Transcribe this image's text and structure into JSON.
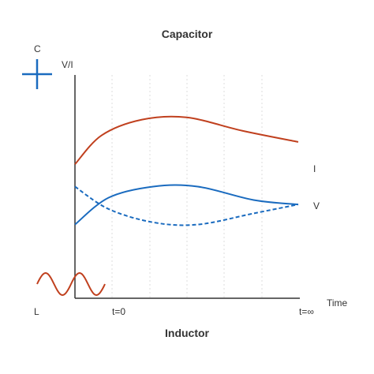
{
  "title": "Capacitor",
  "subtitle": "Inductor",
  "labels": {
    "capacitor_symbol": "C",
    "inductor_symbol": "L",
    "y_axis": "V/I",
    "x_axis": "Time",
    "t_start": "t=0",
    "t_end": "t=∞",
    "current": "I",
    "voltage": "V"
  },
  "colors": {
    "current": "#c0401e",
    "voltage": "#1a6bbf",
    "axis": "#333333",
    "grid": "#dddddd"
  },
  "icons": {
    "capacitor": "plus-cross-icon",
    "inductor": "sine-wave-icon"
  },
  "chart_data": {
    "type": "line",
    "x_range": [
      "t=0",
      "t=∞"
    ],
    "series": [
      {
        "name": "I",
        "style": "solid",
        "color": "#c0401e",
        "points": [
          [
            0,
            0.6
          ],
          [
            0.12,
            0.73
          ],
          [
            0.3,
            0.8
          ],
          [
            0.5,
            0.81
          ],
          [
            0.75,
            0.75
          ],
          [
            1,
            0.7
          ]
        ]
      },
      {
        "name": "V",
        "style": "solid",
        "color": "#1a6bbf",
        "points": [
          [
            0,
            0.33
          ],
          [
            0.15,
            0.45
          ],
          [
            0.35,
            0.5
          ],
          [
            0.55,
            0.5
          ],
          [
            0.8,
            0.44
          ],
          [
            1,
            0.42
          ]
        ]
      },
      {
        "style": "dashed",
        "color": "#1a6bbf",
        "points": [
          [
            0,
            0.5
          ],
          [
            0.15,
            0.4
          ],
          [
            0.35,
            0.34
          ],
          [
            0.55,
            0.33
          ],
          [
            0.8,
            0.38
          ],
          [
            1,
            0.42
          ]
        ]
      }
    ]
  }
}
